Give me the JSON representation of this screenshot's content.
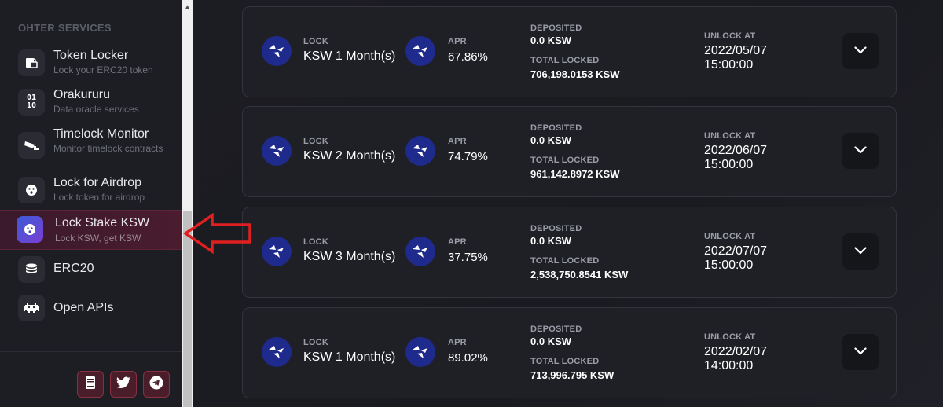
{
  "sidebar": {
    "section_title": "OHTER SERVICES",
    "items": [
      {
        "title": "Token Locker",
        "subtitle": "Lock your ERC20 token",
        "icon": "lock-token-icon"
      },
      {
        "title": "Orakururu",
        "subtitle": "Data oracle services",
        "icon": "binary-data-icon"
      },
      {
        "title": "Timelock Monitor",
        "subtitle": "Monitor timelock contracts",
        "icon": "cctv-camera-icon"
      },
      {
        "title": "Lock for Airdrop",
        "subtitle": "Lock token for airdrop",
        "icon": "airdrop-face-icon"
      },
      {
        "title": "Lock Stake KSW",
        "subtitle": "Lock KSW, get KSW",
        "icon": "ksw-face-icon",
        "active": true
      },
      {
        "title": "ERC20",
        "subtitle": "",
        "icon": "coin-stack-icon"
      },
      {
        "title": "Open APIs",
        "subtitle": "",
        "icon": "space-invader-icon"
      }
    ],
    "social": [
      "book-icon",
      "twitter-icon",
      "telegram-icon"
    ]
  },
  "cards": [
    {
      "lock_label": "LOCK",
      "lock_value": "KSW 1 Month(s)",
      "apr_label": "APR",
      "apr_value": "67.86%",
      "deposited_label": "DEPOSITED",
      "deposited_value": "0.0 KSW",
      "total_label": "TOTAL LOCKED",
      "total_value": "706,198.0153 KSW",
      "unlock_label": "UNLOCK AT",
      "unlock_date": "2022/05/07",
      "unlock_time": "15:00:00"
    },
    {
      "lock_label": "LOCK",
      "lock_value": "KSW 2 Month(s)",
      "apr_label": "APR",
      "apr_value": "74.79%",
      "deposited_label": "DEPOSITED",
      "deposited_value": "0.0 KSW",
      "total_label": "TOTAL LOCKED",
      "total_value": "961,142.8972 KSW",
      "unlock_label": "UNLOCK AT",
      "unlock_date": "2022/06/07",
      "unlock_time": "15:00:00"
    },
    {
      "lock_label": "LOCK",
      "lock_value": "KSW 3 Month(s)",
      "apr_label": "APR",
      "apr_value": "37.75%",
      "deposited_label": "DEPOSITED",
      "deposited_value": "0.0 KSW",
      "total_label": "TOTAL LOCKED",
      "total_value": "2,538,750.8541 KSW",
      "unlock_label": "UNLOCK AT",
      "unlock_date": "2022/07/07",
      "unlock_time": "15:00:00"
    },
    {
      "lock_label": "LOCK",
      "lock_value": "KSW 1 Month(s)",
      "apr_label": "APR",
      "apr_value": "89.02%",
      "deposited_label": "DEPOSITED",
      "deposited_value": "0.0 KSW",
      "total_label": "TOTAL LOCKED",
      "total_value": "713,996.795 KSW",
      "unlock_label": "UNLOCK AT",
      "unlock_date": "2022/02/07",
      "unlock_time": "14:00:00"
    }
  ],
  "colors": {
    "annotation_arrow": "#e02020",
    "active_bg": "#4a1c2e",
    "logo_bg": "#1e2a8c"
  }
}
